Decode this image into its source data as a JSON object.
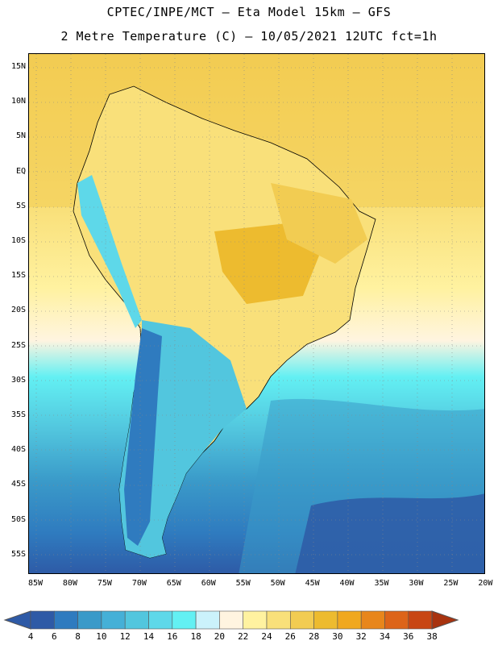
{
  "title": {
    "line1": "CPTEC/INPE/MCT –  Eta Model 15km – GFS",
    "line2": "2 Metre Temperature (C) – 10/05/2021 12UTC fct=1h"
  },
  "map": {
    "region": "South America",
    "lat_labels": [
      "15N",
      "10N",
      "5N",
      "EQ",
      "5S",
      "10S",
      "15S",
      "20S",
      "25S",
      "30S",
      "35S",
      "40S",
      "45S",
      "50S",
      "55S"
    ],
    "lon_labels": [
      "85W",
      "80W",
      "75W",
      "70W",
      "65W",
      "60W",
      "55W",
      "50W",
      "45W",
      "40W",
      "35W",
      "30W",
      "25W",
      "20W"
    ]
  },
  "colorbar": {
    "labels": [
      "4",
      "6",
      "8",
      "10",
      "12",
      "14",
      "16",
      "18",
      "20",
      "22",
      "24",
      "26",
      "28",
      "30",
      "32",
      "34",
      "36",
      "38"
    ],
    "colors": [
      "#2e5aa6",
      "#2f7bbf",
      "#3a9ac9",
      "#45b0d7",
      "#52c6de",
      "#5ed8e9",
      "#63f0f3",
      "#cbf2fb",
      "#fff4e0",
      "#fff2a0",
      "#f9e07a",
      "#f2cc52",
      "#edbb2f",
      "#f0a81f",
      "#e8861b",
      "#dd6419",
      "#c84613",
      "#a8330f"
    ]
  }
}
